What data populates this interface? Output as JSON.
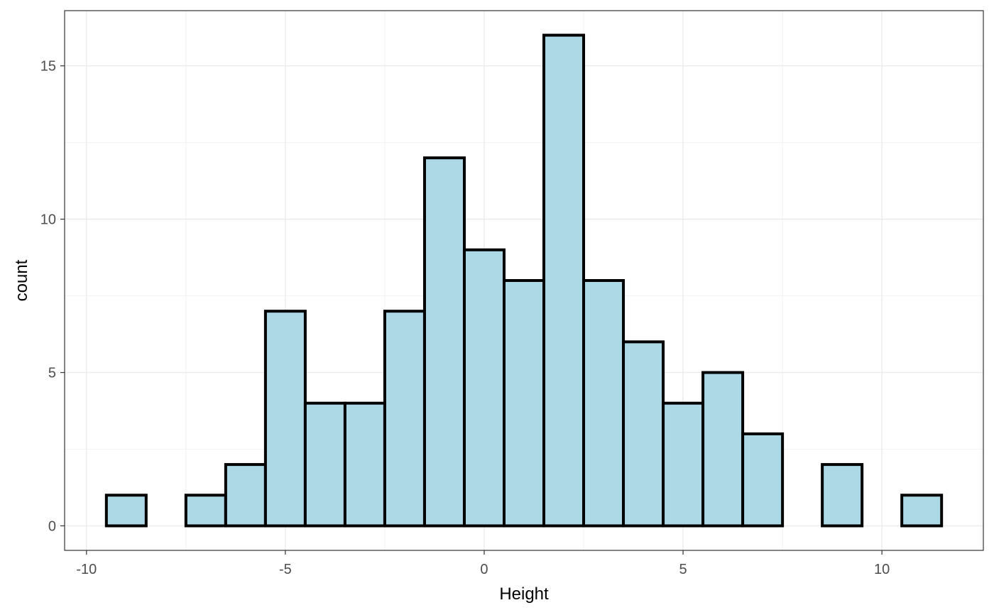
{
  "chart_data": {
    "type": "bar",
    "subtype": "histogram",
    "bin_width": 1,
    "bins": [
      {
        "center": -9,
        "count": 1
      },
      {
        "center": -8,
        "count": 0
      },
      {
        "center": -7,
        "count": 1
      },
      {
        "center": -6,
        "count": 2
      },
      {
        "center": -5,
        "count": 7
      },
      {
        "center": -4,
        "count": 4
      },
      {
        "center": -3,
        "count": 4
      },
      {
        "center": -2,
        "count": 7
      },
      {
        "center": -1,
        "count": 12
      },
      {
        "center": 0,
        "count": 9
      },
      {
        "center": 1,
        "count": 8
      },
      {
        "center": 2,
        "count": 16
      },
      {
        "center": 3,
        "count": 8
      },
      {
        "center": 4,
        "count": 6
      },
      {
        "center": 5,
        "count": 4
      },
      {
        "center": 6,
        "count": 5
      },
      {
        "center": 7,
        "count": 3
      },
      {
        "center": 8,
        "count": 0
      },
      {
        "center": 9,
        "count": 2
      },
      {
        "center": 10,
        "count": 0
      },
      {
        "center": 11,
        "count": 1
      }
    ],
    "xlabel": "Height",
    "ylabel": "count",
    "xlim": [
      -10.55,
      12.55
    ],
    "ylim": [
      -0.8,
      16.8
    ],
    "x_ticks": [
      -10,
      -5,
      0,
      5,
      10
    ],
    "x_tick_labels": [
      "-10",
      "-5",
      "0",
      "5",
      "10"
    ],
    "y_ticks": [
      0,
      5,
      10,
      15
    ],
    "y_tick_labels": [
      "0",
      "5",
      "10",
      "15"
    ],
    "grid": true,
    "legend": "none",
    "colors": {
      "bar_fill": "#add8e6",
      "bar_outline": "#000000",
      "grid_major": "#ebebeb",
      "grid_minor": "#f3f3f3",
      "panel_border": "#333333",
      "tick_text": "#4d4d4d",
      "title_text": "#000000"
    }
  }
}
